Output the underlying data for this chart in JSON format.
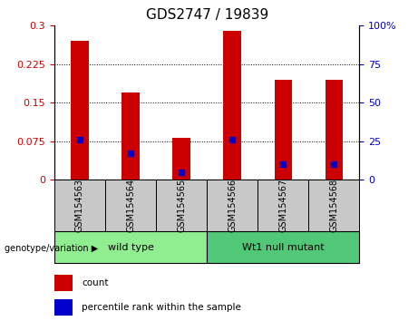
{
  "title": "GDS2747 / 19839",
  "samples": [
    "GSM154563",
    "GSM154564",
    "GSM154565",
    "GSM154566",
    "GSM154567",
    "GSM154568"
  ],
  "count_values": [
    0.27,
    0.17,
    0.082,
    0.29,
    0.195,
    0.195
  ],
  "percentile_values": [
    26,
    17,
    5,
    26,
    10,
    10
  ],
  "ylim_left": [
    0,
    0.3
  ],
  "ylim_right": [
    0,
    100
  ],
  "yticks_left": [
    0,
    0.075,
    0.15,
    0.225,
    0.3
  ],
  "yticks_right": [
    0,
    25,
    50,
    75,
    100
  ],
  "ytick_labels_left": [
    "0",
    "0.075",
    "0.15",
    "0.225",
    "0.3"
  ],
  "ytick_labels_right": [
    "0",
    "25",
    "50",
    "75",
    "100%"
  ],
  "groups": [
    {
      "label": "wild type",
      "indices": [
        0,
        1,
        2
      ],
      "color": "#90EE90"
    },
    {
      "label": "Wt1 null mutant",
      "indices": [
        3,
        4,
        5
      ],
      "color": "#50C878"
    }
  ],
  "bar_color": "#CC0000",
  "percentile_color": "#0000CC",
  "bar_width": 0.35,
  "background_color": "#ffffff",
  "tick_area_color": "#C8C8C8",
  "genotype_label": "genotype/variation",
  "legend_count_label": "count",
  "legend_percentile_label": "percentile rank within the sample",
  "title_fontsize": 11,
  "axis_fontsize": 8,
  "sample_fontsize": 7,
  "group_fontsize": 8
}
